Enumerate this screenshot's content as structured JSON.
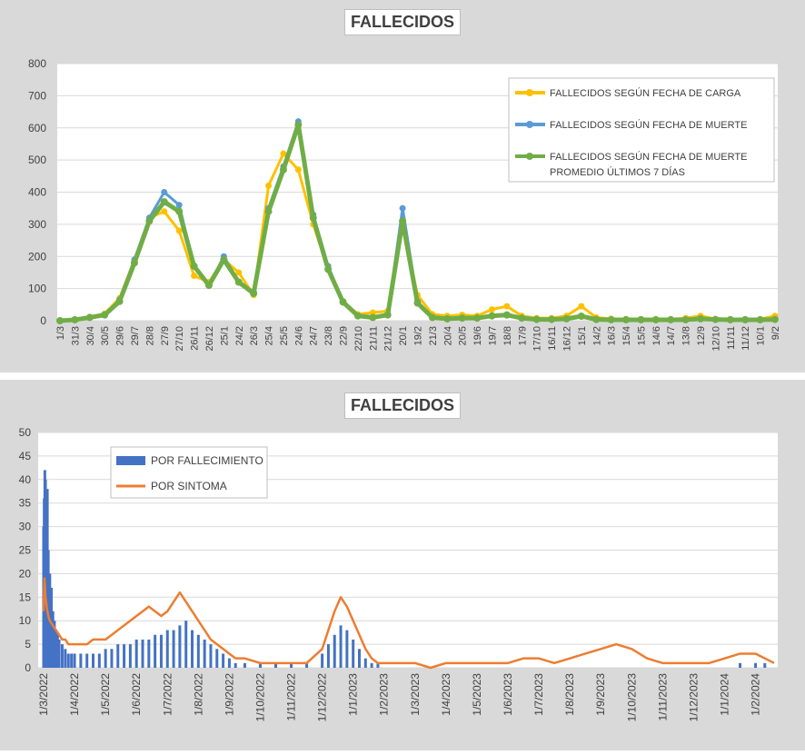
{
  "chart_data": [
    {
      "type": "line",
      "title": "FALLECIDOS",
      "ylim": [
        0,
        800
      ],
      "yticks": [
        "0",
        "100",
        "200",
        "300",
        "400",
        "500",
        "600",
        "700",
        "800"
      ],
      "categories": [
        "1/3",
        "31/3",
        "30/4",
        "30/5",
        "29/6",
        "29/7",
        "28/8",
        "27/9",
        "27/10",
        "26/11",
        "26/12",
        "25/1",
        "24/2",
        "26/3",
        "25/4",
        "25/5",
        "24/6",
        "24/7",
        "23/8",
        "22/9",
        "22/10",
        "21/11",
        "21/12",
        "20/1",
        "19/2",
        "21/3",
        "20/4",
        "20/5",
        "19/6",
        "19/7",
        "18/8",
        "17/9",
        "17/10",
        "16/11",
        "16/12",
        "15/1",
        "14/2",
        "16/3",
        "15/4",
        "15/5",
        "14/6",
        "14/7",
        "13/8",
        "12/9",
        "12/10",
        "11/11",
        "11/12",
        "10/1",
        "9/2"
      ],
      "legend_position": "top-right",
      "grid": true,
      "series": [
        {
          "name": "FALLECIDOS SEGÚN FECHA DE CARGA",
          "color": "#ffc000",
          "values": [
            0,
            4,
            12,
            22,
            70,
            190,
            320,
            340,
            280,
            140,
            120,
            190,
            150,
            80,
            420,
            520,
            470,
            300,
            160,
            60,
            20,
            25,
            30,
            300,
            80,
            20,
            15,
            18,
            15,
            35,
            45,
            15,
            8,
            8,
            15,
            45,
            10,
            6,
            5,
            5,
            5,
            5,
            8,
            15,
            5,
            5,
            5,
            5,
            15
          ]
        },
        {
          "name": "FALLECIDOS SEGÚN FECHA DE MUERTE",
          "color": "#5b9bd5",
          "values": [
            0,
            3,
            10,
            18,
            65,
            190,
            320,
            400,
            360,
            170,
            110,
            200,
            120,
            90,
            350,
            480,
            620,
            330,
            170,
            60,
            15,
            10,
            20,
            350,
            60,
            10,
            5,
            8,
            8,
            15,
            18,
            8,
            4,
            4,
            6,
            15,
            4,
            3,
            3,
            3,
            3,
            3,
            3,
            6,
            4,
            3,
            3,
            3,
            4
          ]
        },
        {
          "name": "FALLECIDOS SEGÚN FECHA DE MUERTE PROMEDIO ÚLTIMOS 7 DÍAS",
          "color": "#70ad47",
          "values": [
            0,
            3,
            10,
            18,
            60,
            180,
            310,
            370,
            340,
            170,
            110,
            190,
            120,
            85,
            340,
            470,
            610,
            320,
            160,
            58,
            15,
            10,
            18,
            310,
            55,
            10,
            6,
            8,
            8,
            15,
            18,
            8,
            4,
            4,
            6,
            14,
            4,
            3,
            3,
            3,
            3,
            3,
            3,
            6,
            4,
            3,
            3,
            3,
            4
          ]
        }
      ]
    },
    {
      "type": "bar",
      "title": "FALLECIDOS",
      "ylim": [
        0,
        50
      ],
      "yticks": [
        "0",
        "5",
        "10",
        "15",
        "20",
        "25",
        "30",
        "35",
        "40",
        "45",
        "50"
      ],
      "categories": [
        "1/3/2022",
        "1/4/2022",
        "1/5/2022",
        "1/6/2022",
        "1/7/2022",
        "1/8/2022",
        "1/9/2022",
        "1/10/2022",
        "1/11/2022",
        "1/12/2022",
        "1/1/2023",
        "1/2/2023",
        "1/3/2023",
        "1/4/2023",
        "1/5/2023",
        "1/6/2023",
        "1/7/2023",
        "1/8/2023",
        "1/9/2023",
        "1/10/2023",
        "1/11/2023",
        "1/12/2023",
        "1/1/2024",
        "1/2/2024"
      ],
      "legend_position": "top-left",
      "grid": true,
      "series": [
        {
          "name": "POR FALLECIMIENTO",
          "kind": "bar",
          "color": "#4472c4",
          "x": [
            0,
            0.02,
            0.04,
            0.06,
            0.08,
            0.1,
            0.12,
            0.15,
            0.2,
            0.25,
            0.3,
            0.35,
            0.4,
            0.45,
            0.5,
            0.6,
            0.7,
            0.8,
            0.9,
            1,
            1.2,
            1.4,
            1.6,
            1.8,
            2,
            2.2,
            2.4,
            2.6,
            2.8,
            3,
            3.2,
            3.4,
            3.6,
            3.8,
            4,
            4.2,
            4.4,
            4.6,
            4.8,
            5,
            5.2,
            5.4,
            5.6,
            5.8,
            6,
            6.2,
            6.5,
            7,
            7.5,
            8,
            8.5,
            9,
            9.2,
            9.4,
            9.6,
            9.8,
            10,
            10.2,
            10.4,
            10.6,
            10.8,
            11,
            11.5,
            12,
            13,
            14,
            15,
            16,
            17,
            18,
            19,
            20,
            21,
            22,
            22.5,
            23,
            23.3,
            23.6
          ],
          "values": [
            30,
            36,
            42,
            40,
            35,
            28,
            38,
            25,
            20,
            17,
            12,
            10,
            8,
            7,
            6,
            5,
            4,
            3,
            3,
            3,
            3,
            3,
            3,
            3,
            4,
            4,
            5,
            5,
            5,
            6,
            6,
            6,
            7,
            7,
            8,
            8,
            9,
            10,
            8,
            7,
            6,
            5,
            4,
            3,
            2,
            1,
            1,
            1,
            1,
            1,
            1,
            3,
            5,
            7,
            9,
            8,
            6,
            4,
            2,
            1,
            1,
            0,
            0,
            0,
            0,
            0,
            0,
            0,
            0,
            0,
            0,
            0,
            0,
            0,
            1,
            1,
            1,
            0
          ]
        },
        {
          "name": "POR SINTOMA",
          "kind": "line",
          "color": "#ed7d31",
          "x": [
            0,
            0.03,
            0.06,
            0.1,
            0.15,
            0.2,
            0.3,
            0.4,
            0.5,
            0.6,
            0.7,
            0.8,
            0.9,
            1,
            1.2,
            1.4,
            1.6,
            1.8,
            2,
            2.2,
            2.4,
            2.6,
            2.8,
            3,
            3.2,
            3.4,
            3.6,
            3.8,
            4,
            4.2,
            4.4,
            4.6,
            4.8,
            5,
            5.2,
            5.4,
            5.6,
            5.8,
            6,
            6.2,
            6.5,
            7,
            7.5,
            8,
            8.5,
            9,
            9.2,
            9.4,
            9.6,
            9.8,
            10,
            10.2,
            10.4,
            10.6,
            10.8,
            11,
            11.5,
            12,
            12.5,
            13,
            13.5,
            14,
            14.5,
            15,
            15.5,
            16,
            16.5,
            17,
            17.5,
            18,
            18.5,
            19,
            19.5,
            20,
            20.5,
            21,
            21.5,
            22,
            22.5,
            23,
            23.3,
            23.6
          ],
          "values": [
            12,
            19,
            15,
            13,
            11,
            10,
            9,
            8,
            7,
            6,
            6,
            5,
            5,
            5,
            5,
            5,
            6,
            6,
            6,
            7,
            8,
            9,
            10,
            11,
            12,
            13,
            12,
            11,
            12,
            14,
            16,
            14,
            12,
            10,
            8,
            6,
            5,
            4,
            3,
            2,
            2,
            1,
            1,
            1,
            1,
            4,
            8,
            12,
            15,
            13,
            10,
            7,
            4,
            2,
            1,
            1,
            1,
            1,
            0,
            1,
            1,
            1,
            1,
            1,
            2,
            2,
            1,
            2,
            3,
            4,
            5,
            4,
            2,
            1,
            1,
            1,
            1,
            2,
            3,
            3,
            2,
            1
          ]
        }
      ]
    }
  ]
}
